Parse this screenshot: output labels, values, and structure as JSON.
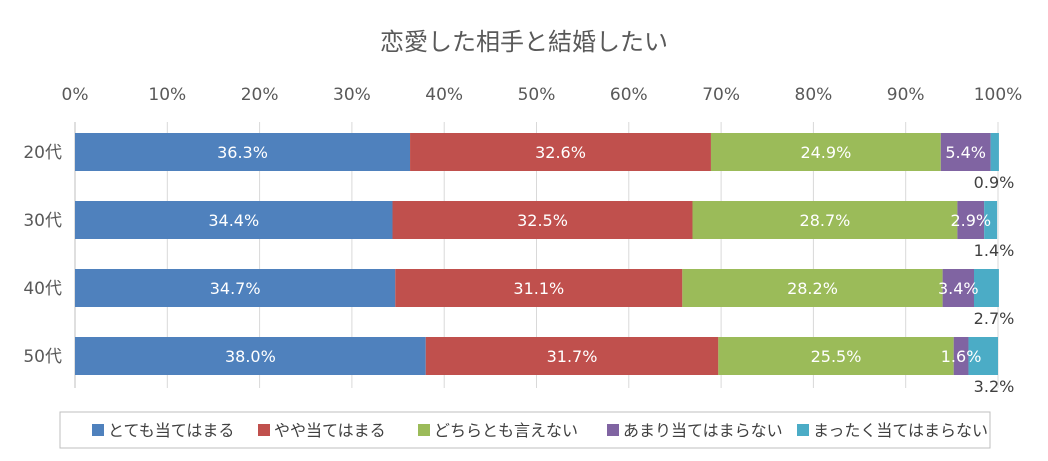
{
  "chart_data": {
    "type": "bar",
    "orientation": "horizontal",
    "stacked": true,
    "percent_stacked": true,
    "title": "恋愛した相手と結婚したい",
    "xlabel": "",
    "ylabel": "",
    "xlim": [
      0,
      100
    ],
    "x_ticks": [
      "0%",
      "10%",
      "20%",
      "30%",
      "40%",
      "50%",
      "60%",
      "70%",
      "80%",
      "90%",
      "100%"
    ],
    "grid": true,
    "legend_position": "bottom",
    "categories": [
      "20代",
      "30代",
      "40代",
      "50代"
    ],
    "series": [
      {
        "name": "とても当てはまる",
        "color": "#4F81BD",
        "values": [
          36.3,
          34.4,
          34.7,
          38.0
        ],
        "labels": [
          "36.3%",
          "34.4%",
          "34.7%",
          "38.0%"
        ]
      },
      {
        "name": "やや当てはまる",
        "color": "#C0504D",
        "values": [
          32.6,
          32.5,
          31.1,
          31.7
        ],
        "labels": [
          "32.6%",
          "32.5%",
          "31.1%",
          "31.7%"
        ]
      },
      {
        "name": "どちらとも言えない",
        "color": "#9BBB59",
        "values": [
          24.9,
          28.7,
          28.2,
          25.5
        ],
        "labels": [
          "24.9%",
          "28.7%",
          "28.2%",
          "25.5%"
        ]
      },
      {
        "name": "あまり当てはまらない",
        "color": "#8064A2",
        "values": [
          5.4,
          2.9,
          3.4,
          1.6
        ],
        "labels": [
          "5.4%",
          "2.9%",
          "3.4%",
          "1.6%"
        ]
      },
      {
        "name": "まったく当てはまらない",
        "color": "#4BACC6",
        "values": [
          0.9,
          1.4,
          2.7,
          3.2
        ],
        "labels": [
          "0.9%",
          "1.4%",
          "2.7%",
          "3.2%"
        ]
      }
    ]
  }
}
